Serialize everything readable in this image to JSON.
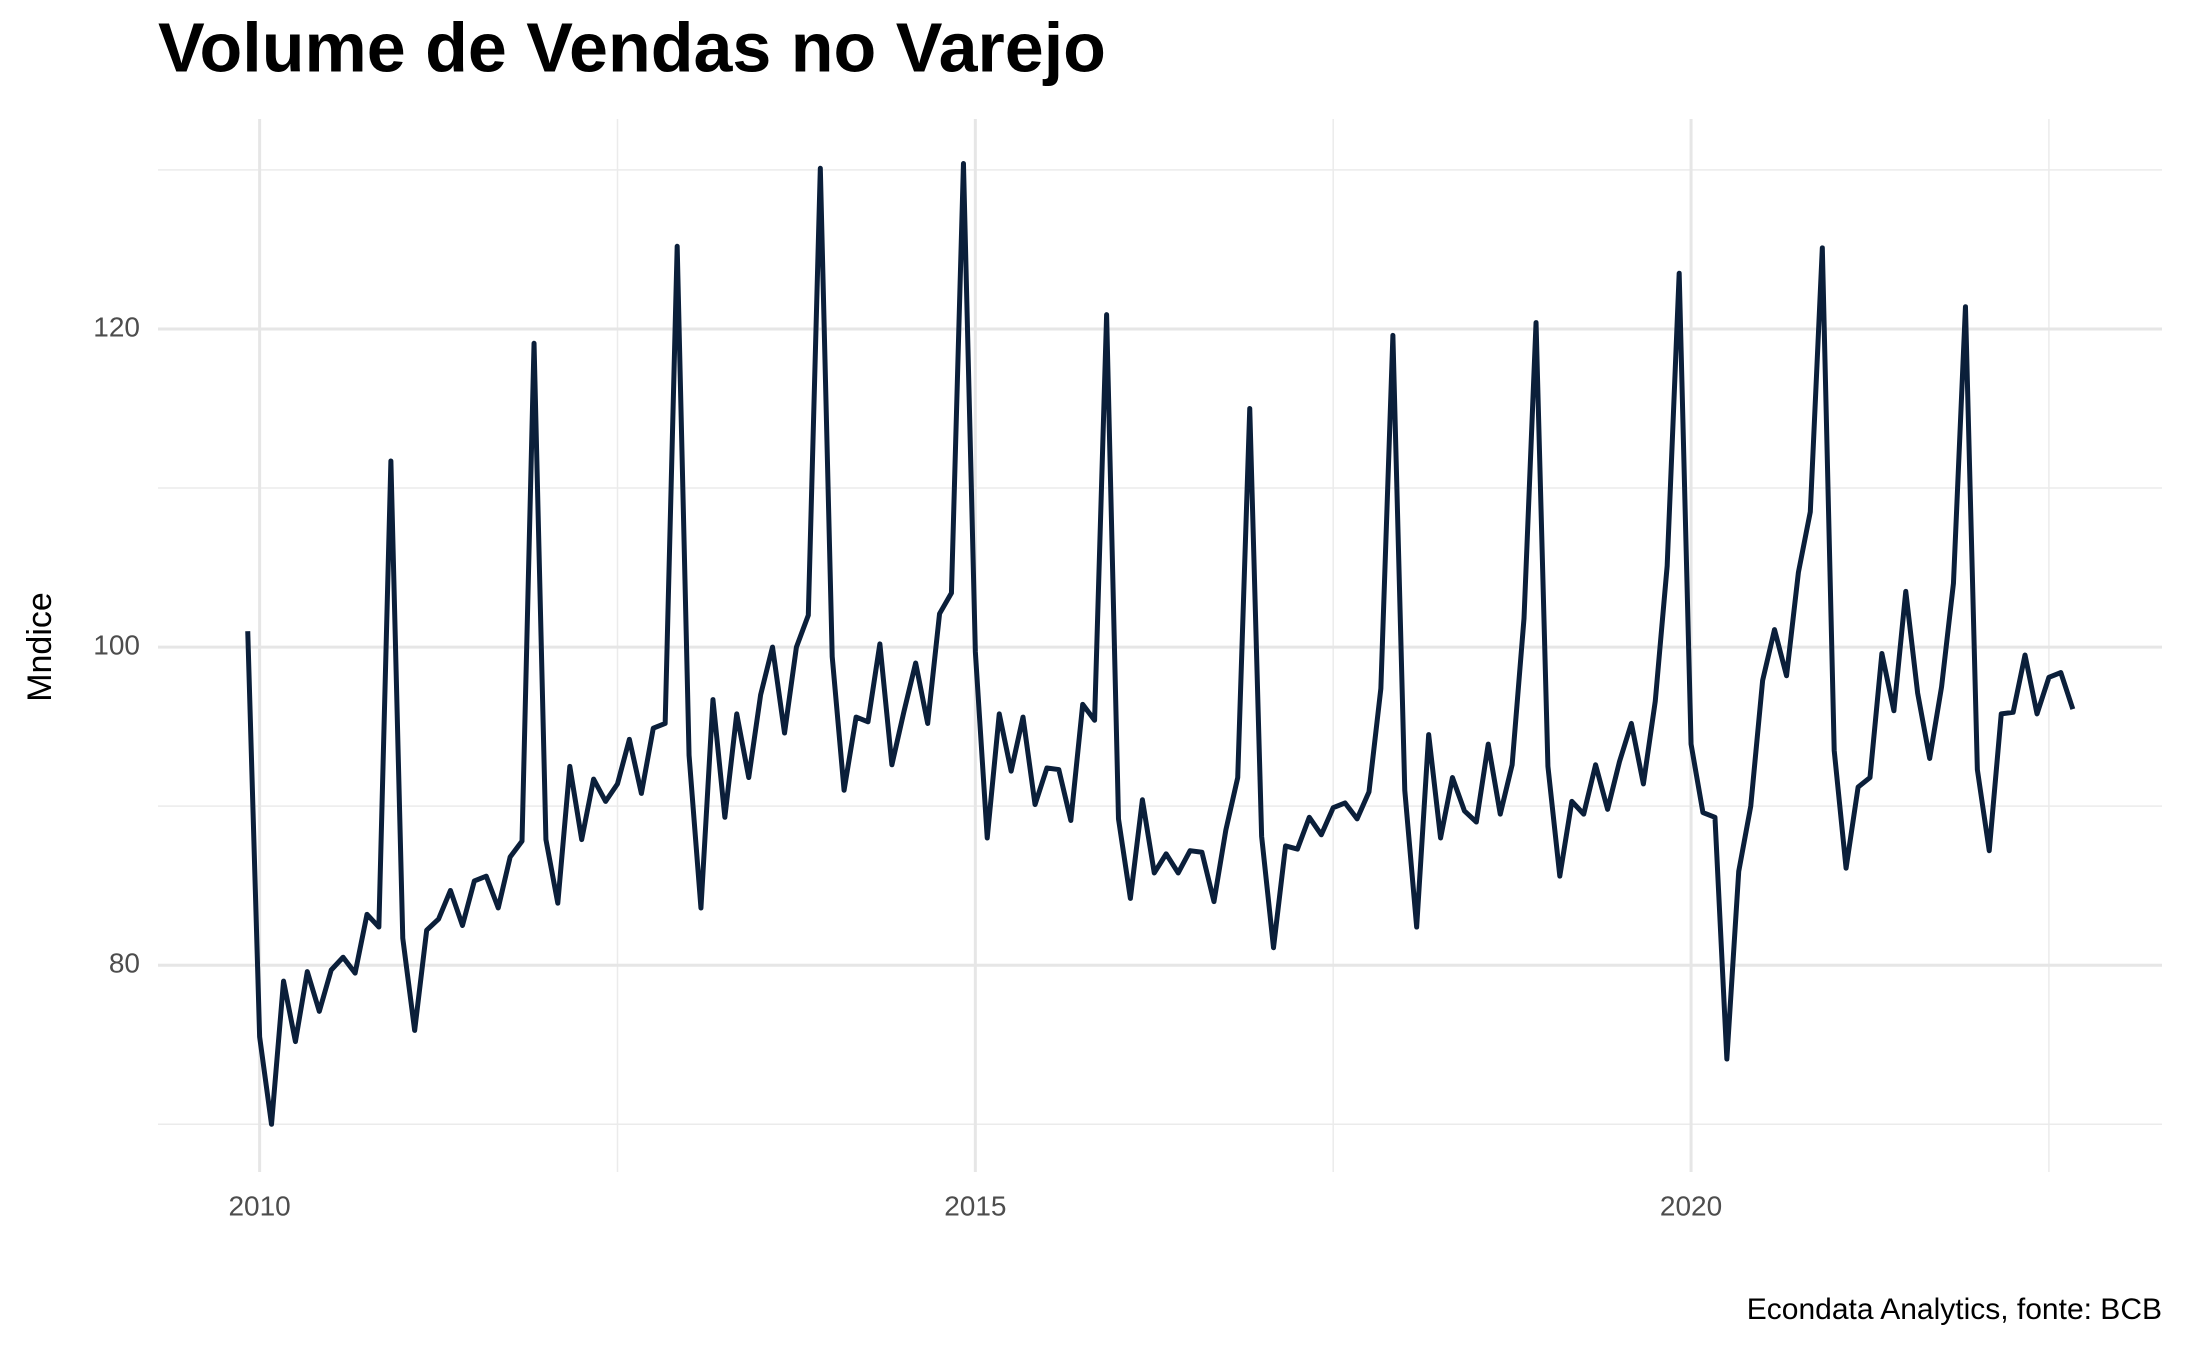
{
  "chart_data": {
    "type": "line",
    "title": "Volume de Vendas no Varejo",
    "ylabel": "Mndice",
    "caption": "Econdata Analytics, fonte: BCB",
    "color": "#0b1f3a",
    "grid": true,
    "x": [
      2009.917,
      2010,
      2010.083,
      2010.167,
      2010.25,
      2010.333,
      2010.417,
      2010.5,
      2010.583,
      2010.667,
      2010.75,
      2010.833,
      2010.917,
      2011,
      2011.083,
      2011.167,
      2011.25,
      2011.333,
      2011.417,
      2011.5,
      2011.583,
      2011.667,
      2011.75,
      2011.833,
      2011.917,
      2012,
      2012.083,
      2012.167,
      2012.25,
      2012.333,
      2012.417,
      2012.5,
      2012.583,
      2012.667,
      2012.75,
      2012.833,
      2012.917,
      2013,
      2013.083,
      2013.167,
      2013.25,
      2013.333,
      2013.417,
      2013.5,
      2013.583,
      2013.667,
      2013.75,
      2013.833,
      2013.917,
      2014,
      2014.083,
      2014.167,
      2014.25,
      2014.333,
      2014.417,
      2014.5,
      2014.583,
      2014.667,
      2014.75,
      2014.833,
      2014.917,
      2015,
      2015.083,
      2015.167,
      2015.25,
      2015.333,
      2015.417,
      2015.5,
      2015.583,
      2015.667,
      2015.75,
      2015.833,
      2015.917,
      2016,
      2016.083,
      2016.167,
      2016.25,
      2016.333,
      2016.417,
      2016.5,
      2016.583,
      2016.667,
      2016.75,
      2016.833,
      2016.917,
      2017,
      2017.083,
      2017.167,
      2017.25,
      2017.333,
      2017.417,
      2017.5,
      2017.583,
      2017.667,
      2017.75,
      2017.833,
      2017.917,
      2018,
      2018.083,
      2018.167,
      2018.25,
      2018.333,
      2018.417,
      2018.5,
      2018.583,
      2018.667,
      2018.75,
      2018.833,
      2018.917,
      2019,
      2019.083,
      2019.167,
      2019.25,
      2019.333,
      2019.417,
      2019.5,
      2019.583,
      2019.667,
      2019.75,
      2019.833,
      2019.917,
      2020,
      2020.083,
      2020.167,
      2020.25,
      2020.333,
      2020.417,
      2020.5,
      2020.583,
      2020.667,
      2020.75,
      2020.833,
      2020.917,
      2021,
      2021.083,
      2021.167,
      2021.25,
      2021.333,
      2021.417,
      2021.5,
      2021.583,
      2021.667,
      2021.75,
      2021.833,
      2021.917,
      2022,
      2022.083,
      2022.167,
      2022.25,
      2022.333,
      2022.417,
      2022.5,
      2022.583,
      2022.667
    ],
    "values": [
      101.0,
      75.5,
      70.0,
      79.0,
      75.2,
      79.6,
      77.1,
      79.7,
      80.5,
      79.5,
      83.2,
      82.4,
      111.7,
      81.7,
      75.9,
      82.2,
      82.9,
      84.7,
      82.5,
      85.3,
      85.6,
      83.6,
      86.8,
      87.8,
      119.1,
      87.9,
      83.9,
      92.5,
      87.9,
      91.7,
      90.3,
      91.4,
      94.2,
      90.8,
      94.9,
      95.2,
      125.2,
      93.2,
      83.6,
      96.7,
      89.3,
      95.8,
      91.8,
      97.0,
      100.0,
      94.6,
      100.0,
      102.0,
      130.1,
      99.4,
      91.0,
      95.6,
      95.3,
      100.2,
      92.6,
      95.9,
      99.0,
      95.2,
      102.1,
      103.4,
      130.4,
      99.7,
      88.0,
      95.8,
      92.2,
      95.6,
      90.1,
      92.4,
      92.3,
      89.1,
      96.4,
      95.4,
      120.9,
      89.2,
      84.2,
      90.4,
      85.8,
      87.0,
      85.8,
      87.2,
      87.1,
      84.0,
      88.5,
      91.8,
      115.0,
      88.1,
      81.1,
      87.5,
      87.3,
      89.3,
      88.2,
      89.9,
      90.2,
      89.2,
      90.9,
      97.4,
      119.6,
      91.0,
      82.4,
      94.5,
      88.0,
      91.8,
      89.7,
      89.0,
      93.9,
      89.5,
      92.6,
      101.8,
      120.4,
      92.5,
      85.6,
      90.3,
      89.5,
      92.6,
      89.8,
      92.8,
      95.2,
      91.4,
      96.6,
      105.1,
      123.5,
      93.9,
      89.6,
      89.3,
      74.1,
      85.9,
      90.0,
      97.9,
      101.1,
      98.2,
      104.7,
      108.5,
      125.1,
      93.5,
      86.1,
      91.2,
      91.8,
      99.6,
      96.0,
      103.5,
      97.1,
      93.0,
      97.5,
      104.0,
      121.4,
      92.3,
      87.2,
      95.8,
      95.9,
      99.5,
      95.8,
      98.1,
      98.4,
      96.1
    ],
    "xlim": [
      2009.29,
      2023.29
    ],
    "xticks": [
      2010,
      2015,
      2020
    ],
    "xminor": [
      2012.5,
      2017.5,
      2022.5
    ],
    "ylim": [
      67.0,
      133.2
    ],
    "yticks": [
      80,
      100,
      120
    ],
    "yminor": [
      70,
      90,
      110,
      130
    ]
  }
}
